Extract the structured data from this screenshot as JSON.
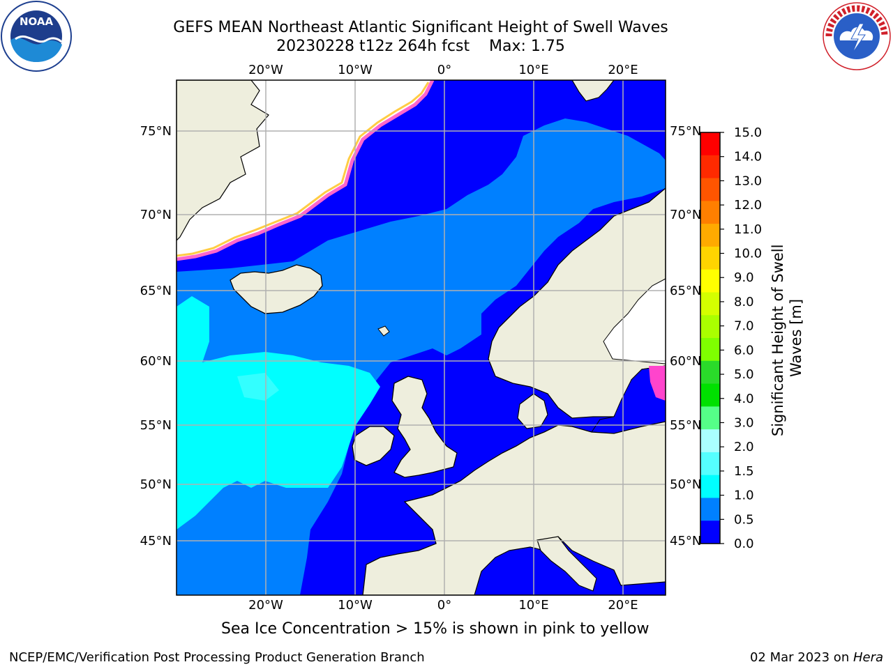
{
  "title": {
    "line1": "GEFS MEAN Northeast Atlantic Significant Height of Swell Waves",
    "line2": "20230228 t12z 264h fcst    Max: 1.75"
  },
  "map": {
    "lon_labels": [
      "20°W",
      "10°W",
      "0°",
      "10°E",
      "20°E"
    ],
    "lat_labels": [
      "75°N",
      "70°N",
      "65°N",
      "60°N",
      "55°N",
      "50°N",
      "45°N"
    ],
    "colors": {
      "land": "#eeeedd",
      "ice": "#ffffff",
      "grid": "#b0b0b0",
      "coast": "#000000"
    }
  },
  "colorbar": {
    "title": "Significant Height of Swell Waves [m]",
    "ticks": [
      "15.0",
      "14.0",
      "13.0",
      "12.0",
      "11.0",
      "10.0",
      "9.0",
      "8.0",
      "7.0",
      "6.0",
      "5.0",
      "4.0",
      "3.0",
      "2.0",
      "1.5",
      "1.0",
      "0.5",
      "0.0"
    ],
    "colors_top_to_bottom": [
      "#ff0000",
      "#ff2a00",
      "#ff5500",
      "#ff7f00",
      "#ffaa00",
      "#ffd400",
      "#ffff00",
      "#d4ff00",
      "#aaff00",
      "#7fff00",
      "#2adb2a",
      "#00e000",
      "#55ff88",
      "#aaffff",
      "#55ffff",
      "#00ffff",
      "#0080ff",
      "#0000ff"
    ]
  },
  "note": "Sea Ice Concentration > 15% is shown in pink to yellow",
  "footer": {
    "left": "NCEP/EMC/Verification Post Processing Product Generation Branch",
    "right_date": "02 Mar 2023 on ",
    "right_machine": "Hera"
  },
  "icons": {
    "left_logo": "noaa-logo-icon",
    "right_logo": "nws-logo-icon"
  }
}
